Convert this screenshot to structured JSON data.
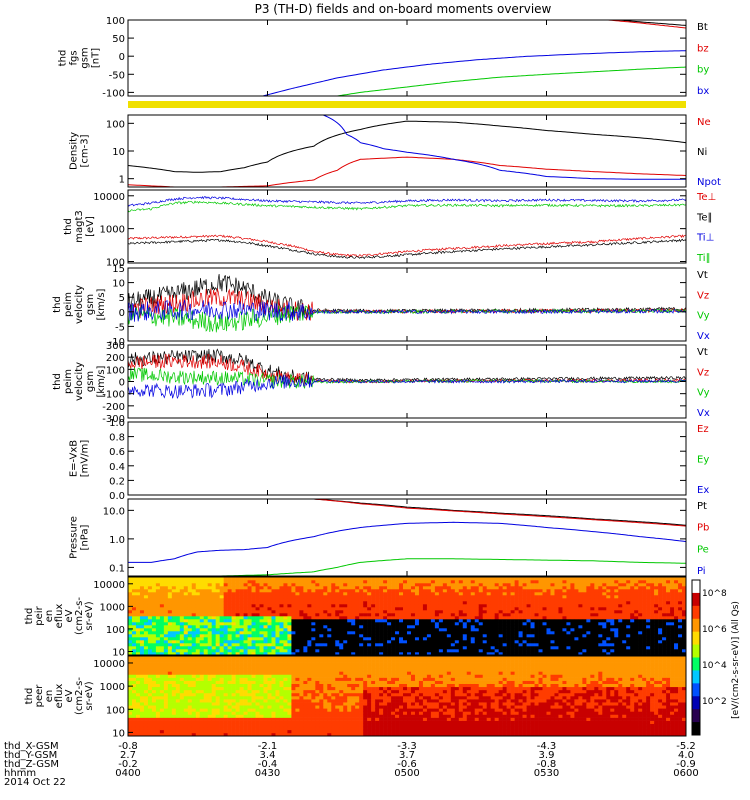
{
  "title": "P3 (TH-D) fields and on-board moments overview",
  "colors": {
    "black": "#000000",
    "red": "#e00000",
    "green": "#00c800",
    "blue": "#0000e0",
    "flag": "#f0e000"
  },
  "chart_data": {
    "type": "line",
    "title": "P3 (TH-D) fields and on-board moments overview",
    "x_ticks": [
      {
        "hhmm": "0400",
        "X": "-0.8",
        "Y": "2.7",
        "Z": "-0.2"
      },
      {
        "hhmm": "0430",
        "X": "-2.1",
        "Y": "3.4",
        "Z": "-0.4"
      },
      {
        "hhmm": "0500",
        "X": "-3.3",
        "Y": "3.7",
        "Z": "-0.6"
      },
      {
        "hhmm": "0530",
        "X": "-4.3",
        "Y": "3.9",
        "Z": "-0.8"
      },
      {
        "hhmm": "0600",
        "X": "-5.2",
        "Y": "4.0",
        "Z": "-0.9"
      }
    ],
    "x_row_labels": [
      "thd_X-GSM",
      "thd_Y-GSM",
      "thd_Z-GSM",
      "hhmm"
    ],
    "date": "2014 Oct 22",
    "x_range_min": [
      0,
      120
    ],
    "panels": [
      {
        "ylabel": [
          "thd",
          "fgs",
          "gsm",
          "[nT]"
        ],
        "ylim": [
          -110,
          100
        ],
        "log": false,
        "yticks": [
          "100",
          "50",
          "0",
          "-50",
          "-100"
        ],
        "ytick_vals": [
          100,
          50,
          0,
          -50,
          -100
        ],
        "series": [
          {
            "name": "Bt",
            "color": "black",
            "x": [
              80,
              90,
              100,
              110,
              120
            ],
            "y": [
              130,
              118,
              106,
              95,
              85
            ]
          },
          {
            "name": "bz",
            "color": "red",
            "x": [
              80,
              90,
              100,
              110,
              120
            ],
            "y": [
              130,
              117,
              104,
              92,
              78
            ]
          },
          {
            "name": "by",
            "color": "green",
            "x": [
              40,
              50,
              60,
              70,
              80,
              90,
              100,
              110,
              120
            ],
            "y": [
              -120,
              -100,
              -85,
              -70,
              -58,
              -50,
              -43,
              -36,
              -30
            ]
          },
          {
            "name": "bx",
            "color": "blue",
            "x": [
              29,
              35,
              45,
              55,
              65,
              75,
              85,
              95,
              105,
              115,
              120
            ],
            "y": [
              -110,
              -90,
              -60,
              -38,
              -22,
              -10,
              -1,
              5,
              10,
              14,
              15
            ]
          }
        ]
      },
      {
        "ylabel": [
          "Density",
          "[cm-3]"
        ],
        "ylim": [
          0.5,
          200
        ],
        "log": true,
        "yticks": [
          "100",
          "10",
          "1"
        ],
        "ytick_vals": [
          100,
          10,
          1
        ],
        "series": [
          {
            "name": "Ne",
            "color": "red",
            "x": [
              0,
              5,
              10,
              20,
              30,
              40,
              45,
              50,
              60,
              70,
              80,
              90,
              100,
              110,
              120
            ],
            "y": [
              0.6,
              0.55,
              0.5,
              0.5,
              0.55,
              0.9,
              2,
              5,
              6,
              5,
              3,
              2.2,
              1.8,
              1.5,
              1.3
            ]
          },
          {
            "name": "Ni",
            "color": "black",
            "x": [
              0,
              10,
              15,
              20,
              25,
              30,
              40,
              50,
              60,
              70,
              80,
              90,
              100,
              110,
              120
            ],
            "y": [
              3,
              1.8,
              1.7,
              1.8,
              2.5,
              4,
              15,
              60,
              120,
              110,
              80,
              55,
              40,
              30,
              20
            ]
          },
          {
            "name": "Npot",
            "color": "blue",
            "x": [
              42,
              47,
              50,
              55,
              60,
              65,
              70,
              75,
              80,
              90,
              100,
              110,
              120
            ],
            "y": [
              200,
              40,
              20,
              12,
              9,
              7,
              5,
              3.5,
              2,
              1.2,
              1,
              0.95,
              0.95
            ]
          }
        ]
      },
      {
        "ylabel": [
          "thd",
          "magt3",
          "[eV]"
        ],
        "ylim": [
          90,
          15000
        ],
        "log": true,
        "yticks": [
          "10000",
          "1000",
          "100"
        ],
        "ytick_vals": [
          10000,
          1000,
          100
        ],
        "series": [
          {
            "name": "Te⊥",
            "color": "red",
            "x": [
              0,
              10,
              20,
              25,
              30,
              35,
              40,
              45,
              50,
              60,
              70,
              80,
              90,
              100,
              110,
              120
            ],
            "y": [
              500,
              550,
              600,
              500,
              400,
              300,
              200,
              160,
              150,
              200,
              250,
              300,
              350,
              400,
              500,
              600
            ]
          },
          {
            "name": "Te∥",
            "color": "black",
            "x": [
              0,
              10,
              20,
              25,
              30,
              35,
              40,
              45,
              50,
              60,
              70,
              80,
              90,
              100,
              110,
              120
            ],
            "y": [
              350,
              400,
              450,
              380,
              300,
              230,
              170,
              140,
              130,
              160,
              200,
              240,
              280,
              320,
              380,
              450
            ]
          },
          {
            "name": "Ti⊥",
            "color": "blue",
            "x": [
              0,
              5,
              10,
              15,
              20,
              30,
              40,
              50,
              60,
              70,
              80,
              90,
              100,
              110,
              120
            ],
            "y": [
              5000,
              6000,
              8000,
              9000,
              8500,
              7000,
              6500,
              6000,
              7000,
              7500,
              7000,
              7500,
              7200,
              7000,
              7500
            ]
          },
          {
            "name": "Ti∥",
            "color": "green",
            "x": [
              0,
              5,
              10,
              15,
              20,
              30,
              40,
              50,
              60,
              70,
              80,
              90,
              100,
              110,
              120
            ],
            "y": [
              3500,
              4000,
              6000,
              6500,
              6000,
              5000,
              4500,
              4000,
              5000,
              5200,
              5000,
              5200,
              5000,
              5000,
              5300
            ]
          }
        ]
      },
      {
        "ylabel": [
          "thd",
          "peim",
          "velocity",
          "gsm",
          "[km/s]"
        ],
        "ylim": [
          -10,
          15
        ],
        "log": false,
        "yticks": [
          "15",
          "10",
          "5",
          "0",
          "-5",
          "-10"
        ],
        "ytick_vals": [
          15,
          10,
          5,
          0,
          -5,
          -10
        ],
        "series": [
          {
            "name": "Vt",
            "color": "black",
            "x": [
              0,
              10,
              20,
              25,
              30,
              35,
              40,
              50,
              60,
              80,
              100,
              120
            ],
            "y": [
              3,
              6,
              10,
              8,
              4,
              1.5,
              0.5,
              0.3,
              0.3,
              0.5,
              0.7,
              1
            ]
          },
          {
            "name": "Vz",
            "color": "red",
            "x": [
              0,
              10,
              20,
              25,
              30,
              35,
              40,
              50,
              80,
              120
            ],
            "y": [
              1,
              3,
              5,
              4,
              2,
              0.5,
              0.2,
              0.1,
              0.2,
              0.5
            ]
          },
          {
            "name": "Vy",
            "color": "green",
            "x": [
              0,
              10,
              20,
              25,
              30,
              35,
              40,
              50,
              80,
              120
            ],
            "y": [
              -1,
              -2,
              -4,
              -3,
              -1.5,
              -0.5,
              0,
              0,
              0.2,
              0.3
            ]
          },
          {
            "name": "Vx",
            "color": "blue",
            "x": [
              0,
              10,
              20,
              30,
              40,
              50,
              80,
              120
            ],
            "y": [
              0,
              0.5,
              1,
              0.3,
              0,
              0,
              0,
              0.2
            ]
          }
        ]
      },
      {
        "ylabel": [
          "thd",
          "peim",
          "velocity",
          "gsm",
          "[km/s]"
        ],
        "ylim": [
          -300,
          300
        ],
        "log": false,
        "yticks": [
          "300",
          "200",
          "100",
          "0",
          "-100",
          "-200",
          "-300"
        ],
        "ytick_vals": [
          300,
          200,
          100,
          0,
          -100,
          -200,
          -300
        ],
        "series": [
          {
            "name": "Vt",
            "color": "black",
            "x": [
              0,
              10,
              20,
              25,
              30,
              35,
              40,
              50,
              60,
              80,
              100,
              120
            ],
            "y": [
              180,
              200,
              210,
              170,
              90,
              40,
              20,
              10,
              15,
              20,
              25,
              30
            ]
          },
          {
            "name": "Vz",
            "color": "red",
            "x": [
              0,
              10,
              20,
              25,
              30,
              35,
              40,
              50,
              80,
              120
            ],
            "y": [
              150,
              170,
              160,
              120,
              60,
              20,
              5,
              0,
              5,
              10
            ]
          },
          {
            "name": "Vy",
            "color": "green",
            "x": [
              0,
              10,
              20,
              25,
              30,
              35,
              40,
              50,
              80,
              120
            ],
            "y": [
              60,
              40,
              30,
              20,
              5,
              0,
              -5,
              0,
              5,
              0
            ]
          },
          {
            "name": "Vx",
            "color": "blue",
            "x": [
              0,
              10,
              20,
              25,
              30,
              35,
              40,
              50,
              80,
              120
            ],
            "y": [
              -60,
              -80,
              -70,
              -40,
              -10,
              0,
              5,
              0,
              0,
              5
            ]
          }
        ]
      },
      {
        "ylabel": [
          "E=-VxB",
          "[mV/m]"
        ],
        "ylim": [
          0,
          1
        ],
        "log": false,
        "yticks": [
          "1.0",
          "0.8",
          "0.6",
          "0.4",
          "0.2",
          "0.0"
        ],
        "ytick_vals": [
          1,
          0.8,
          0.6,
          0.4,
          0.2,
          0
        ],
        "series": [
          {
            "name": "Ez",
            "color": "red",
            "x": [],
            "y": []
          },
          {
            "name": "Ey",
            "color": "green",
            "x": [],
            "y": []
          },
          {
            "name": "Ex",
            "color": "blue",
            "x": [],
            "y": []
          }
        ]
      },
      {
        "ylabel": [
          "Pressure",
          "[nPa]"
        ],
        "ylim": [
          0.05,
          25
        ],
        "log": true,
        "yticks": [
          "10.0",
          "1.0",
          "0.1"
        ],
        "ytick_vals": [
          10,
          1,
          0.1
        ],
        "series": [
          {
            "name": "Pt",
            "color": "black",
            "x": [
              40,
              50,
              60,
              70,
              80,
              90,
              100,
              110,
              120
            ],
            "y": [
              25,
              18,
              13,
              10,
              8,
              6.5,
              5,
              4,
              3
            ]
          },
          {
            "name": "Pb",
            "color": "red",
            "x": [
              40,
              50,
              60,
              70,
              80,
              90,
              100,
              110,
              120
            ],
            "y": [
              25,
              17,
              12,
              9.5,
              7.5,
              6,
              4.7,
              3.7,
              2.8
            ]
          },
          {
            "name": "Pe",
            "color": "green",
            "x": [
              0,
              10,
              20,
              30,
              40,
              45,
              50,
              60,
              70,
              80,
              90,
              100,
              110,
              120
            ],
            "y": [
              0.045,
              0.05,
              0.05,
              0.055,
              0.07,
              0.1,
              0.15,
              0.2,
              0.2,
              0.19,
              0.18,
              0.17,
              0.15,
              0.14
            ]
          },
          {
            "name": "Pi",
            "color": "blue",
            "x": [
              0,
              5,
              10,
              15,
              20,
              25,
              30,
              40,
              50,
              60,
              70,
              80,
              90,
              100,
              110,
              120
            ],
            "y": [
              0.15,
              0.15,
              0.2,
              0.35,
              0.4,
              0.42,
              0.5,
              1.2,
              2.5,
              3.5,
              3.8,
              3.5,
              2.5,
              1.8,
              1.2,
              0.8
            ]
          }
        ]
      }
    ],
    "spectrograms": [
      {
        "ylabel": [
          "thd",
          "peir",
          "en",
          "eflux",
          "eV",
          "(cm2-s-",
          "sr-eV)"
        ],
        "yticks": [
          "10000",
          "1000",
          "100",
          "10"
        ],
        "ytick_vals": [
          10000,
          1000,
          100,
          10
        ],
        "ylim": [
          7,
          20000
        ]
      },
      {
        "ylabel": [
          "thd",
          "peer",
          "en",
          "eflux",
          "eV",
          "(cm2-s-",
          "sr-eV)"
        ],
        "yticks": [
          "10000",
          "1000",
          "100",
          "10"
        ],
        "ytick_vals": [
          10000,
          1000,
          100,
          10
        ],
        "ylim": [
          7,
          20000
        ]
      }
    ],
    "colorbar": {
      "label": "[eV/(cm2-s-sr-eV)] (All Qs)",
      "ticks": [
        "10^8",
        "10^6",
        "10^4",
        "10^2"
      ],
      "colors": [
        "#ffffff",
        "#c80000",
        "#ff3c00",
        "#ff9600",
        "#ffdc00",
        "#b4ff00",
        "#00ff64",
        "#00c8ff",
        "#0050ff",
        "#0000b4",
        "#280050",
        "#000000"
      ]
    }
  }
}
